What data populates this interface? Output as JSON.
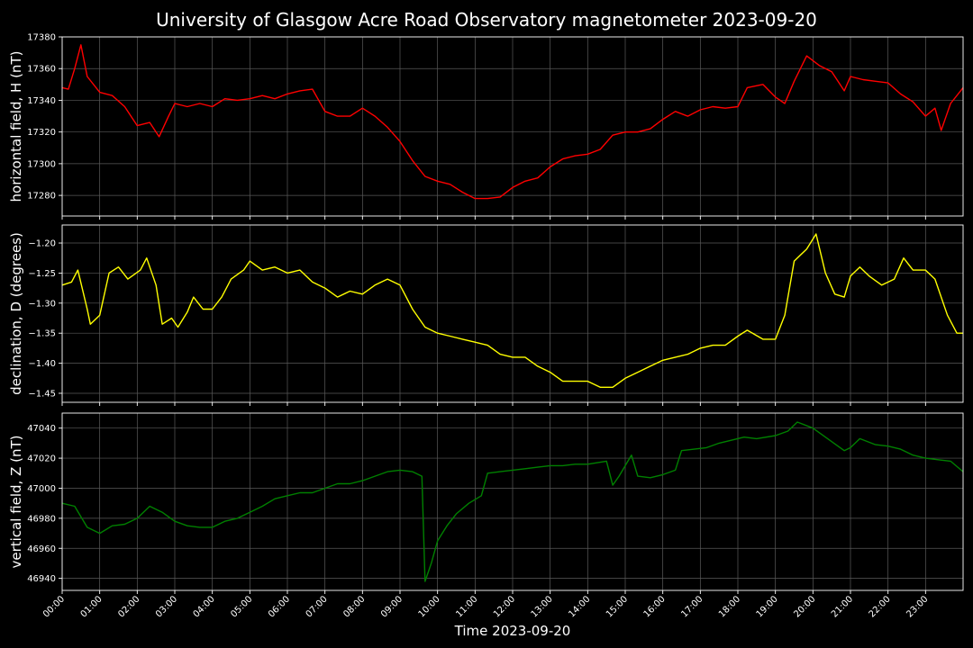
{
  "chart_data": {
    "type": "line",
    "title": "University of Glasgow Acre Road Observatory magnetometer 2023-09-20",
    "xlabel": "Time 2023-09-20",
    "x_ticks": [
      "00:00",
      "01:00",
      "02:00",
      "03:00",
      "04:00",
      "05:00",
      "06:00",
      "07:00",
      "08:00",
      "09:00",
      "10:00",
      "11:00",
      "12:00",
      "13:00",
      "14:00",
      "15:00",
      "16:00",
      "17:00",
      "18:00",
      "19:00",
      "20:00",
      "21:00",
      "22:00",
      "23:00"
    ],
    "xlim": [
      "00:00",
      "24:00"
    ],
    "grid": true,
    "panels": [
      {
        "name": "H",
        "ylabel": "horizontal field, H (nT)",
        "color": "#ff0000",
        "ylim": [
          17267,
          17380
        ],
        "y_ticks": [
          17280,
          17300,
          17320,
          17340,
          17360,
          17380
        ],
        "series": [
          {
            "x": "00:00",
            "y": 17348
          },
          {
            "x": "00:10",
            "y": 17347
          },
          {
            "x": "00:20",
            "y": 17360
          },
          {
            "x": "00:30",
            "y": 17375
          },
          {
            "x": "00:40",
            "y": 17355
          },
          {
            "x": "01:00",
            "y": 17345
          },
          {
            "x": "01:20",
            "y": 17343
          },
          {
            "x": "01:40",
            "y": 17336
          },
          {
            "x": "02:00",
            "y": 17324
          },
          {
            "x": "02:20",
            "y": 17326
          },
          {
            "x": "02:35",
            "y": 17317
          },
          {
            "x": "02:50",
            "y": 17330
          },
          {
            "x": "03:00",
            "y": 17338
          },
          {
            "x": "03:20",
            "y": 17336
          },
          {
            "x": "03:40",
            "y": 17338
          },
          {
            "x": "04:00",
            "y": 17336
          },
          {
            "x": "04:20",
            "y": 17341
          },
          {
            "x": "04:40",
            "y": 17340
          },
          {
            "x": "05:00",
            "y": 17341
          },
          {
            "x": "05:20",
            "y": 17343
          },
          {
            "x": "05:40",
            "y": 17341
          },
          {
            "x": "06:00",
            "y": 17344
          },
          {
            "x": "06:20",
            "y": 17346
          },
          {
            "x": "06:40",
            "y": 17347
          },
          {
            "x": "07:00",
            "y": 17333
          },
          {
            "x": "07:20",
            "y": 17330
          },
          {
            "x": "07:40",
            "y": 17330
          },
          {
            "x": "08:00",
            "y": 17335
          },
          {
            "x": "08:20",
            "y": 17330
          },
          {
            "x": "08:40",
            "y": 17323
          },
          {
            "x": "09:00",
            "y": 17314
          },
          {
            "x": "09:20",
            "y": 17302
          },
          {
            "x": "09:40",
            "y": 17292
          },
          {
            "x": "10:00",
            "y": 17289
          },
          {
            "x": "10:20",
            "y": 17287
          },
          {
            "x": "10:40",
            "y": 17282
          },
          {
            "x": "11:00",
            "y": 17278
          },
          {
            "x": "11:20",
            "y": 17278
          },
          {
            "x": "11:40",
            "y": 17279
          },
          {
            "x": "12:00",
            "y": 17285
          },
          {
            "x": "12:20",
            "y": 17289
          },
          {
            "x": "12:40",
            "y": 17291
          },
          {
            "x": "13:00",
            "y": 17298
          },
          {
            "x": "13:20",
            "y": 17303
          },
          {
            "x": "13:40",
            "y": 17305
          },
          {
            "x": "14:00",
            "y": 17306
          },
          {
            "x": "14:20",
            "y": 17309
          },
          {
            "x": "14:40",
            "y": 17318
          },
          {
            "x": "15:00",
            "y": 17320
          },
          {
            "x": "15:20",
            "y": 17320
          },
          {
            "x": "15:40",
            "y": 17322
          },
          {
            "x": "16:00",
            "y": 17328
          },
          {
            "x": "16:20",
            "y": 17333
          },
          {
            "x": "16:40",
            "y": 17330
          },
          {
            "x": "17:00",
            "y": 17334
          },
          {
            "x": "17:20",
            "y": 17336
          },
          {
            "x": "17:40",
            "y": 17335
          },
          {
            "x": "18:00",
            "y": 17336
          },
          {
            "x": "18:15",
            "y": 17348
          },
          {
            "x": "18:40",
            "y": 17350
          },
          {
            "x": "19:00",
            "y": 17342
          },
          {
            "x": "19:15",
            "y": 17338
          },
          {
            "x": "19:30",
            "y": 17352
          },
          {
            "x": "19:50",
            "y": 17368
          },
          {
            "x": "20:10",
            "y": 17362
          },
          {
            "x": "20:30",
            "y": 17358
          },
          {
            "x": "20:50",
            "y": 17346
          },
          {
            "x": "21:00",
            "y": 17355
          },
          {
            "x": "21:20",
            "y": 17353
          },
          {
            "x": "21:40",
            "y": 17352
          },
          {
            "x": "22:00",
            "y": 17351
          },
          {
            "x": "22:20",
            "y": 17344
          },
          {
            "x": "22:40",
            "y": 17339
          },
          {
            "x": "23:00",
            "y": 17330
          },
          {
            "x": "23:15",
            "y": 17335
          },
          {
            "x": "23:25",
            "y": 17321
          },
          {
            "x": "23:40",
            "y": 17338
          },
          {
            "x": "24:00",
            "y": 17348
          }
        ]
      },
      {
        "name": "D",
        "ylabel": "declination, D (degrees)",
        "color": "#ffff00",
        "ylim": [
          -1.465,
          -1.17
        ],
        "y_ticks": [
          -1.45,
          -1.4,
          -1.35,
          -1.3,
          -1.25,
          -1.2
        ],
        "series": [
          {
            "x": "00:00",
            "y": -1.27
          },
          {
            "x": "00:15",
            "y": -1.265
          },
          {
            "x": "00:25",
            "y": -1.245
          },
          {
            "x": "00:40",
            "y": -1.31
          },
          {
            "x": "00:45",
            "y": -1.335
          },
          {
            "x": "01:00",
            "y": -1.32
          },
          {
            "x": "01:15",
            "y": -1.25
          },
          {
            "x": "01:30",
            "y": -1.24
          },
          {
            "x": "01:45",
            "y": -1.26
          },
          {
            "x": "02:05",
            "y": -1.245
          },
          {
            "x": "02:15",
            "y": -1.225
          },
          {
            "x": "02:30",
            "y": -1.27
          },
          {
            "x": "02:40",
            "y": -1.335
          },
          {
            "x": "02:55",
            "y": -1.325
          },
          {
            "x": "03:05",
            "y": -1.34
          },
          {
            "x": "03:20",
            "y": -1.315
          },
          {
            "x": "03:30",
            "y": -1.29
          },
          {
            "x": "03:45",
            "y": -1.31
          },
          {
            "x": "04:00",
            "y": -1.31
          },
          {
            "x": "04:15",
            "y": -1.29
          },
          {
            "x": "04:30",
            "y": -1.26
          },
          {
            "x": "04:50",
            "y": -1.245
          },
          {
            "x": "05:00",
            "y": -1.23
          },
          {
            "x": "05:20",
            "y": -1.245
          },
          {
            "x": "05:40",
            "y": -1.24
          },
          {
            "x": "06:00",
            "y": -1.25
          },
          {
            "x": "06:20",
            "y": -1.245
          },
          {
            "x": "06:40",
            "y": -1.265
          },
          {
            "x": "07:00",
            "y": -1.275
          },
          {
            "x": "07:20",
            "y": -1.29
          },
          {
            "x": "07:40",
            "y": -1.28
          },
          {
            "x": "08:00",
            "y": -1.285
          },
          {
            "x": "08:20",
            "y": -1.27
          },
          {
            "x": "08:40",
            "y": -1.26
          },
          {
            "x": "09:00",
            "y": -1.27
          },
          {
            "x": "09:20",
            "y": -1.31
          },
          {
            "x": "09:40",
            "y": -1.34
          },
          {
            "x": "10:00",
            "y": -1.35
          },
          {
            "x": "10:20",
            "y": -1.355
          },
          {
            "x": "10:40",
            "y": -1.36
          },
          {
            "x": "11:00",
            "y": -1.365
          },
          {
            "x": "11:20",
            "y": -1.37
          },
          {
            "x": "11:40",
            "y": -1.385
          },
          {
            "x": "12:00",
            "y": -1.39
          },
          {
            "x": "12:20",
            "y": -1.39
          },
          {
            "x": "12:40",
            "y": -1.405
          },
          {
            "x": "13:00",
            "y": -1.415
          },
          {
            "x": "13:20",
            "y": -1.43
          },
          {
            "x": "13:40",
            "y": -1.43
          },
          {
            "x": "14:00",
            "y": -1.43
          },
          {
            "x": "14:20",
            "y": -1.44
          },
          {
            "x": "14:40",
            "y": -1.44
          },
          {
            "x": "15:00",
            "y": -1.425
          },
          {
            "x": "15:20",
            "y": -1.415
          },
          {
            "x": "15:40",
            "y": -1.405
          },
          {
            "x": "16:00",
            "y": -1.395
          },
          {
            "x": "16:20",
            "y": -1.39
          },
          {
            "x": "16:40",
            "y": -1.385
          },
          {
            "x": "17:00",
            "y": -1.375
          },
          {
            "x": "17:20",
            "y": -1.37
          },
          {
            "x": "17:40",
            "y": -1.37
          },
          {
            "x": "18:00",
            "y": -1.355
          },
          {
            "x": "18:15",
            "y": -1.345
          },
          {
            "x": "18:40",
            "y": -1.36
          },
          {
            "x": "19:00",
            "y": -1.36
          },
          {
            "x": "19:15",
            "y": -1.32
          },
          {
            "x": "19:30",
            "y": -1.23
          },
          {
            "x": "19:50",
            "y": -1.21
          },
          {
            "x": "20:05",
            "y": -1.185
          },
          {
            "x": "20:20",
            "y": -1.25
          },
          {
            "x": "20:35",
            "y": -1.285
          },
          {
            "x": "20:50",
            "y": -1.29
          },
          {
            "x": "21:00",
            "y": -1.255
          },
          {
            "x": "21:15",
            "y": -1.24
          },
          {
            "x": "21:30",
            "y": -1.255
          },
          {
            "x": "21:50",
            "y": -1.27
          },
          {
            "x": "22:10",
            "y": -1.26
          },
          {
            "x": "22:25",
            "y": -1.225
          },
          {
            "x": "22:40",
            "y": -1.245
          },
          {
            "x": "23:00",
            "y": -1.245
          },
          {
            "x": "23:15",
            "y": -1.26
          },
          {
            "x": "23:35",
            "y": -1.32
          },
          {
            "x": "23:50",
            "y": -1.35
          },
          {
            "x": "24:00",
            "y": -1.35
          }
        ]
      },
      {
        "name": "Z",
        "ylabel": "vertical field, Z (nT)",
        "color": "#008000",
        "ylim": [
          46932,
          47050
        ],
        "y_ticks": [
          46940,
          46960,
          46980,
          47000,
          47020,
          47040
        ],
        "series": [
          {
            "x": "00:00",
            "y": 46990
          },
          {
            "x": "00:20",
            "y": 46988
          },
          {
            "x": "00:40",
            "y": 46974
          },
          {
            "x": "01:00",
            "y": 46970
          },
          {
            "x": "01:20",
            "y": 46975
          },
          {
            "x": "01:40",
            "y": 46976
          },
          {
            "x": "02:00",
            "y": 46980
          },
          {
            "x": "02:20",
            "y": 46988
          },
          {
            "x": "02:40",
            "y": 46984
          },
          {
            "x": "03:00",
            "y": 46978
          },
          {
            "x": "03:20",
            "y": 46975
          },
          {
            "x": "03:40",
            "y": 46974
          },
          {
            "x": "04:00",
            "y": 46974
          },
          {
            "x": "04:20",
            "y": 46978
          },
          {
            "x": "04:40",
            "y": 46980
          },
          {
            "x": "05:00",
            "y": 46984
          },
          {
            "x": "05:20",
            "y": 46988
          },
          {
            "x": "05:40",
            "y": 46993
          },
          {
            "x": "06:00",
            "y": 46995
          },
          {
            "x": "06:20",
            "y": 46997
          },
          {
            "x": "06:40",
            "y": 46997
          },
          {
            "x": "07:00",
            "y": 47000
          },
          {
            "x": "07:20",
            "y": 47003
          },
          {
            "x": "07:40",
            "y": 47003
          },
          {
            "x": "08:00",
            "y": 47005
          },
          {
            "x": "08:20",
            "y": 47008
          },
          {
            "x": "08:40",
            "y": 47011
          },
          {
            "x": "09:00",
            "y": 47012
          },
          {
            "x": "09:20",
            "y": 47011
          },
          {
            "x": "09:35",
            "y": 47008
          },
          {
            "x": "09:40",
            "y": 46938
          },
          {
            "x": "09:50",
            "y": 46950
          },
          {
            "x": "10:00",
            "y": 46965
          },
          {
            "x": "10:15",
            "y": 46975
          },
          {
            "x": "10:30",
            "y": 46983
          },
          {
            "x": "10:50",
            "y": 46990
          },
          {
            "x": "11:10",
            "y": 46995
          },
          {
            "x": "11:20",
            "y": 47010
          },
          {
            "x": "11:40",
            "y": 47011
          },
          {
            "x": "12:00",
            "y": 47012
          },
          {
            "x": "12:20",
            "y": 47013
          },
          {
            "x": "12:40",
            "y": 47014
          },
          {
            "x": "13:00",
            "y": 47015
          },
          {
            "x": "13:20",
            "y": 47015
          },
          {
            "x": "13:40",
            "y": 47016
          },
          {
            "x": "14:00",
            "y": 47016
          },
          {
            "x": "14:30",
            "y": 47018
          },
          {
            "x": "14:40",
            "y": 47002
          },
          {
            "x": "14:50",
            "y": 47008
          },
          {
            "x": "15:10",
            "y": 47022
          },
          {
            "x": "15:20",
            "y": 47008
          },
          {
            "x": "15:40",
            "y": 47007
          },
          {
            "x": "16:00",
            "y": 47009
          },
          {
            "x": "16:20",
            "y": 47012
          },
          {
            "x": "16:30",
            "y": 47025
          },
          {
            "x": "16:50",
            "y": 47026
          },
          {
            "x": "17:10",
            "y": 47027
          },
          {
            "x": "17:30",
            "y": 47030
          },
          {
            "x": "17:50",
            "y": 47032
          },
          {
            "x": "18:10",
            "y": 47034
          },
          {
            "x": "18:30",
            "y": 47033
          },
          {
            "x": "19:00",
            "y": 47035
          },
          {
            "x": "19:20",
            "y": 47038
          },
          {
            "x": "19:35",
            "y": 47044
          },
          {
            "x": "20:00",
            "y": 47040
          },
          {
            "x": "20:20",
            "y": 47034
          },
          {
            "x": "20:40",
            "y": 47028
          },
          {
            "x": "20:50",
            "y": 47025
          },
          {
            "x": "21:00",
            "y": 47027
          },
          {
            "x": "21:15",
            "y": 47033
          },
          {
            "x": "21:40",
            "y": 47029
          },
          {
            "x": "22:00",
            "y": 47028
          },
          {
            "x": "22:20",
            "y": 47026
          },
          {
            "x": "22:40",
            "y": 47022
          },
          {
            "x": "23:00",
            "y": 47020
          },
          {
            "x": "23:20",
            "y": 47019
          },
          {
            "x": "23:40",
            "y": 47018
          },
          {
            "x": "24:00",
            "y": 47011
          }
        ]
      }
    ]
  }
}
